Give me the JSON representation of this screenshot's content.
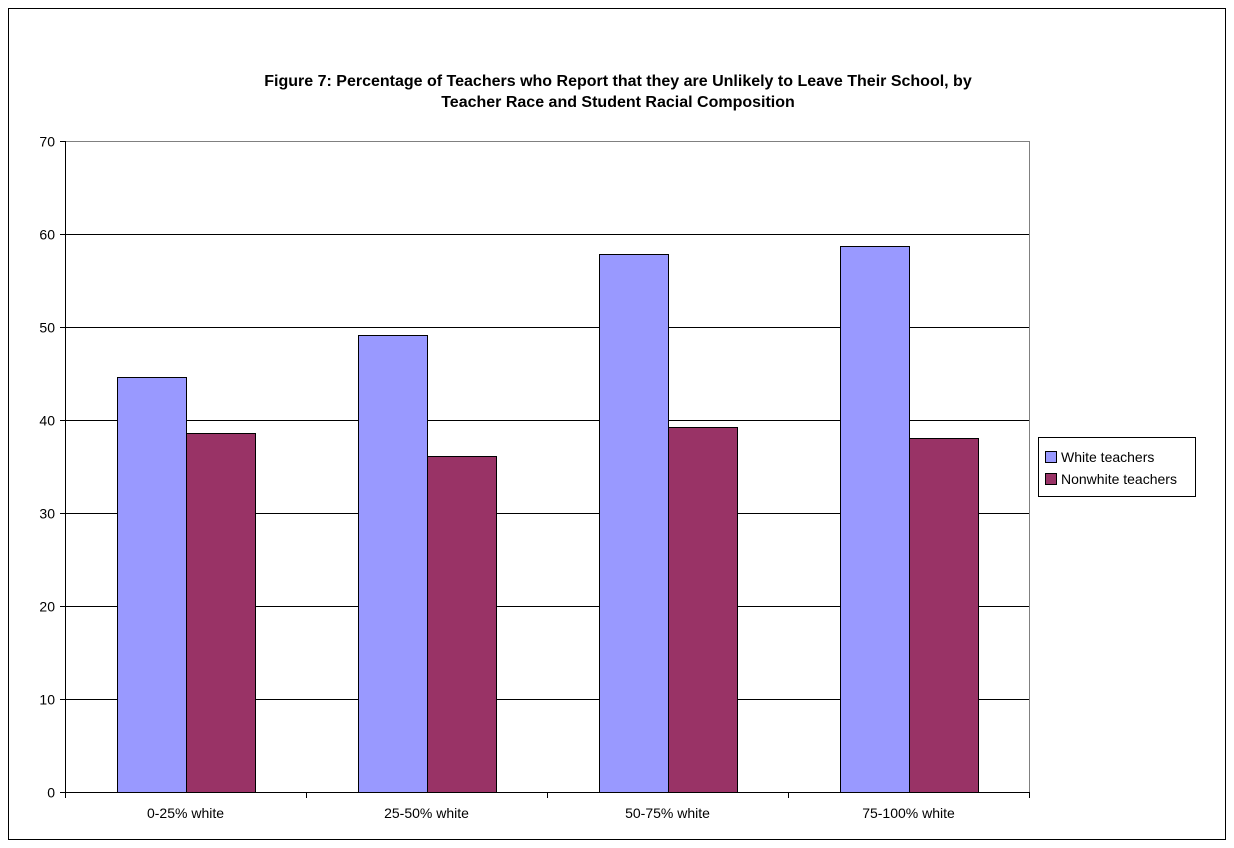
{
  "chart_data": {
    "type": "bar",
    "title_lines": [
      "Figure 7: Percentage of Teachers who Report that they are Unlikely to Leave Their School, by",
      "Teacher Race and Student Racial Composition"
    ],
    "categories": [
      "0-25% white",
      "25-50% white",
      "50-75% white",
      "75-100% white"
    ],
    "series": [
      {
        "name": "White teachers",
        "color": "#9999ff",
        "values": [
          44.6,
          49.1,
          57.9,
          58.7
        ]
      },
      {
        "name": "Nonwhite teachers",
        "color": "#993366",
        "values": [
          38.6,
          36.1,
          39.3,
          38.1
        ]
      }
    ],
    "ylim": [
      0,
      70
    ],
    "yticks": [
      "0",
      "10",
      "20",
      "30",
      "40",
      "50",
      "60",
      "70"
    ],
    "grid": true,
    "legend_position": "right"
  }
}
